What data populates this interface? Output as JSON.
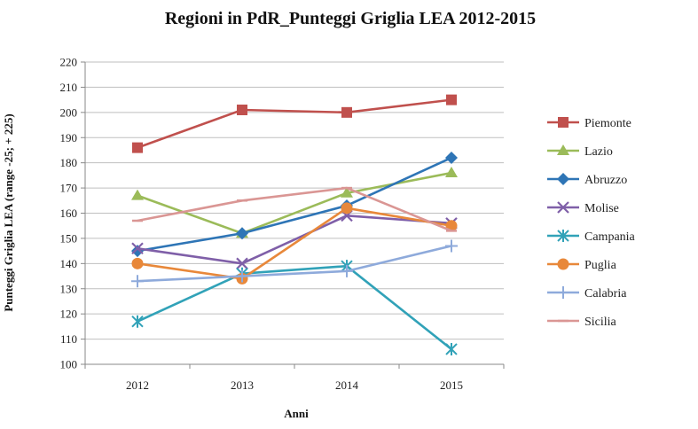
{
  "chart_data": {
    "type": "line",
    "title": "Regioni in PdR_Punteggi Griglia LEA 2012-2015",
    "xlabel": "Anni",
    "ylabel": "Punteggi Griglia LEA (range -25; + 225)",
    "categories": [
      "2012",
      "2013",
      "2014",
      "2015"
    ],
    "ylim": [
      100,
      220
    ],
    "yticks": [
      100,
      110,
      120,
      130,
      140,
      150,
      160,
      170,
      180,
      190,
      200,
      210,
      220
    ],
    "grid": "horizontal",
    "legend_position": "right",
    "series": [
      {
        "name": "Piemonte",
        "values": [
          186,
          201,
          200,
          205
        ],
        "color": "#C0504D",
        "marker": "square"
      },
      {
        "name": "Lazio",
        "values": [
          167,
          152,
          168,
          176
        ],
        "color": "#9BBB59",
        "marker": "triangle"
      },
      {
        "name": "Abruzzo",
        "values": [
          145,
          152,
          163,
          182
        ],
        "color": "#2E75B6",
        "marker": "diamond"
      },
      {
        "name": "Molise",
        "values": [
          146,
          140,
          159,
          156
        ],
        "color": "#7F5FA8",
        "marker": "x"
      },
      {
        "name": "Campania",
        "values": [
          117,
          136,
          139,
          106
        ],
        "color": "#31A2B8",
        "marker": "asterisk"
      },
      {
        "name": "Puglia",
        "values": [
          140,
          134,
          162,
          155
        ],
        "color": "#E8883A",
        "marker": "circle"
      },
      {
        "name": "Calabria",
        "values": [
          133,
          135,
          137,
          147
        ],
        "color": "#8EAADB",
        "marker": "plus"
      },
      {
        "name": "Sicilia",
        "values": [
          157,
          165,
          170,
          153
        ],
        "color": "#DA9694",
        "marker": "dash"
      }
    ]
  }
}
